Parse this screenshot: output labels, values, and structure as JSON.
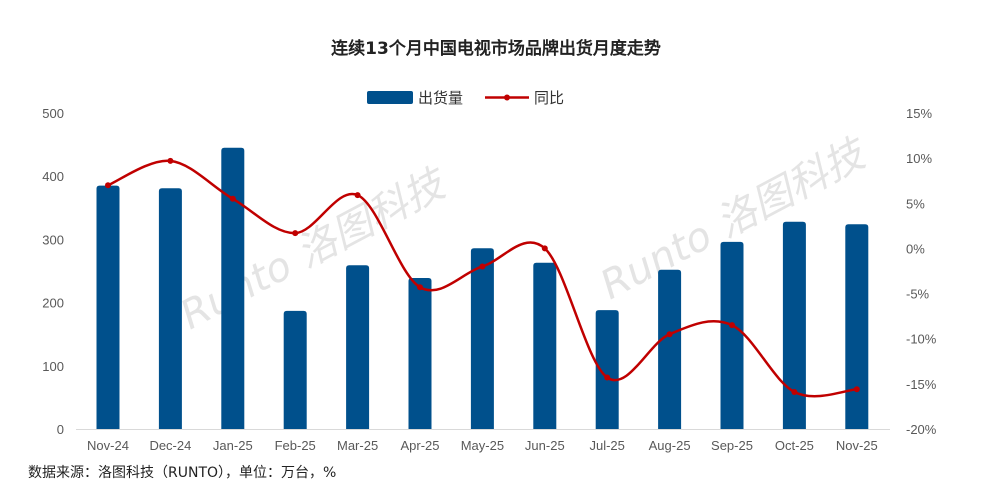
{
  "chart_data": {
    "type": "bar+line",
    "title": "连续13个月中国电视市场品牌出货月度走势",
    "categories": [
      "Nov-24",
      "Dec-24",
      "Jan-25",
      "Feb-25",
      "Mar-25",
      "Apr-25",
      "May-25",
      "Jun-25",
      "Jul-25",
      "Aug-25",
      "Sep-25",
      "Oct-25",
      "Nov-25"
    ],
    "series": [
      {
        "name": "出货量",
        "type": "bar",
        "axis": "left",
        "color": "#00508C",
        "values": [
          385,
          381,
          445,
          187,
          259,
          239,
          286,
          263,
          188,
          252,
          296,
          328,
          324
        ]
      },
      {
        "name": "同比",
        "type": "line",
        "axis": "right",
        "color": "#C00000",
        "smooth": true,
        "values": [
          7.0,
          9.7,
          5.5,
          1.7,
          5.9,
          -4.3,
          -2.0,
          0.0,
          -14.3,
          -9.5,
          -8.5,
          -15.9,
          -15.6
        ]
      }
    ],
    "left_axis": {
      "range": [
        0,
        500
      ],
      "ticks": [
        "0",
        "100",
        "200",
        "300",
        "400",
        "500"
      ]
    },
    "right_axis": {
      "range": [
        -20,
        15
      ],
      "ticks": [
        "-20%",
        "-15%",
        "-10%",
        "-5%",
        "0%",
        "5%",
        "10%",
        "15%"
      ]
    },
    "legend": "top-center",
    "grid": false
  },
  "source": "数据来源：洛图科技（RUNTO），单位：万台，%",
  "watermark": "Runto 洛图科技"
}
